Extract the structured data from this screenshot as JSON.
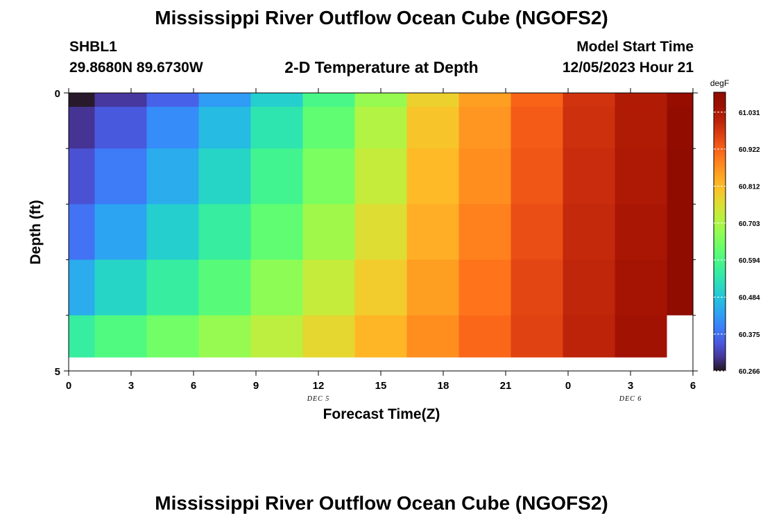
{
  "page": {
    "title": "Mississippi River Outflow Ocean Cube (NGOFS2)",
    "title_repeat": "Mississippi River Outflow Ocean Cube (NGOFS2)",
    "station_id": "SHBL1",
    "station_coords": "29.8680N  89.6730W",
    "subtitle": "2-D Temperature at Depth",
    "model_start_label": "Model Start Time",
    "model_start_value": "12/05/2023 Hour 21"
  },
  "chart_data": {
    "type": "heatmap",
    "title": "2-D Temperature at Depth",
    "xlabel": "Forecast Time(Z)",
    "ylabel": "Depth (ft)",
    "x_tick_labels": [
      "0",
      "3",
      "6",
      "9",
      "12",
      "15",
      "18",
      "21",
      "0",
      "3",
      "6"
    ],
    "x_tick_hours": [
      0,
      3,
      6,
      9,
      12,
      15,
      18,
      21,
      24,
      27,
      30
    ],
    "x_range_hours": [
      0,
      30
    ],
    "date_labels": [
      {
        "text": "DEC 5",
        "hour": 12
      },
      {
        "text": "DEC 6",
        "hour": 27
      }
    ],
    "y_tick_labels": [
      "0",
      "5"
    ],
    "y_ticks": [
      0,
      5
    ],
    "y_minor_ticks": [
      1,
      2,
      3,
      4
    ],
    "y_range": [
      0,
      5
    ],
    "cell_hours": [
      0,
      2.5,
      5,
      7.5,
      10,
      12.5,
      15,
      17.5,
      20,
      22.5,
      25,
      27.5,
      30
    ],
    "depth_levels_ft": [
      0,
      0.5,
      1.5,
      2.5,
      3.5,
      4.5,
      5.0
    ],
    "values": [
      [
        60.27,
        60.31,
        60.36,
        60.43,
        60.5,
        60.59,
        60.68,
        60.78,
        60.85,
        60.92,
        60.98,
        61.02,
        61.06
      ],
      [
        60.305,
        60.35,
        60.41,
        60.47,
        60.54,
        60.62,
        60.71,
        60.8,
        60.86,
        60.93,
        60.985,
        61.02,
        61.07
      ],
      [
        60.34,
        60.39,
        60.45,
        60.51,
        60.58,
        60.65,
        60.73,
        60.815,
        60.87,
        60.935,
        60.99,
        61.025,
        61.08
      ],
      [
        60.38,
        60.44,
        60.5,
        60.56,
        60.62,
        60.69,
        60.76,
        60.83,
        60.885,
        60.945,
        60.995,
        61.03,
        61.085
      ],
      [
        60.45,
        60.51,
        60.56,
        60.61,
        60.67,
        60.73,
        60.79,
        60.85,
        60.9,
        60.955,
        61.0,
        61.035,
        61.095
      ],
      [
        60.56,
        60.6,
        60.64,
        60.68,
        60.72,
        60.77,
        60.82,
        60.87,
        60.915,
        60.96,
        61.005,
        61.04,
        null
      ]
    ],
    "colorbar": {
      "unit": "degF",
      "tick_labels": [
        "61.031",
        "60.922",
        "60.812",
        "60.703",
        "60.594",
        "60.484",
        "60.375",
        "60.266"
      ],
      "ticks": [
        61.031,
        60.922,
        60.812,
        60.703,
        60.594,
        60.484,
        60.375,
        60.266
      ],
      "vmin": 60.266,
      "vmax": 61.09,
      "colormap": "turbo"
    },
    "colors": {
      "missing": "#ffffff"
    }
  }
}
